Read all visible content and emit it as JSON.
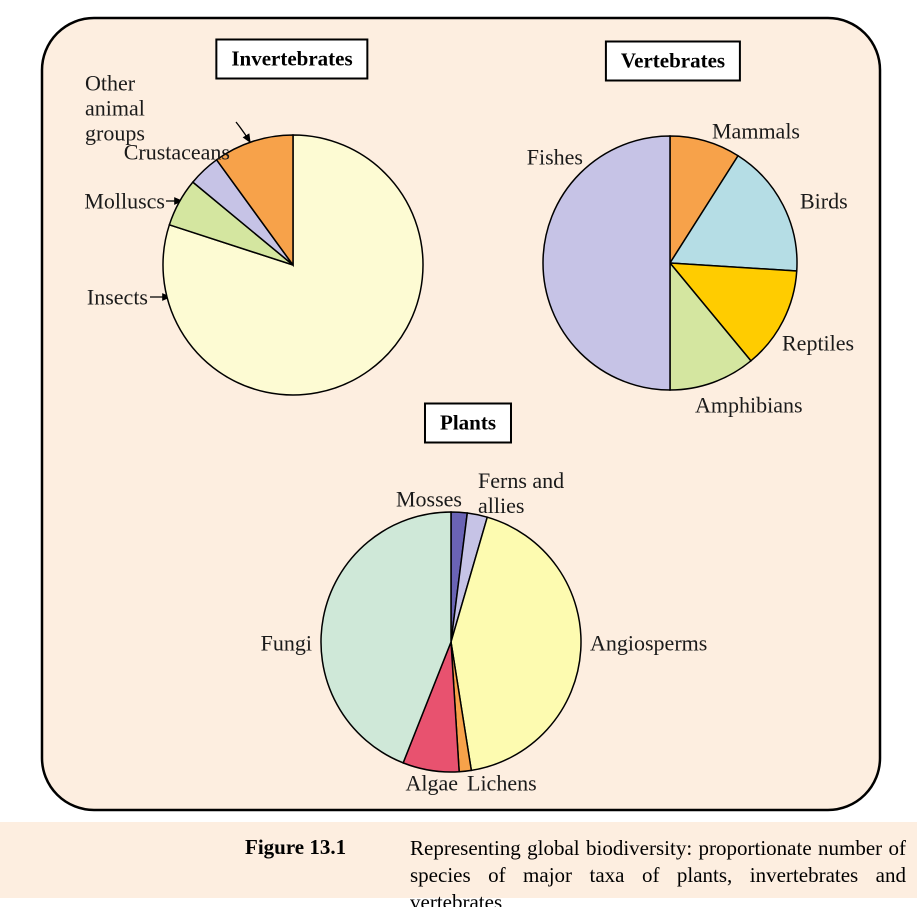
{
  "chart_data": [
    {
      "type": "pie",
      "title": "Invertebrates",
      "categories": [
        "Insects",
        "Molluscs",
        "Crustaceans",
        "Other animal groups"
      ],
      "values": [
        80,
        6,
        4,
        10
      ],
      "colors": [
        "#fdfbd3",
        "#d4e6a0",
        "#c6c3e6",
        "#f7a24a"
      ]
    },
    {
      "type": "pie",
      "title": "Vertebrates",
      "categories": [
        "Mammals",
        "Birds",
        "Reptiles",
        "Amphibians",
        "Fishes"
      ],
      "values": [
        9,
        17,
        13,
        11,
        50
      ],
      "colors": [
        "#f7a24a",
        "#b5dde5",
        "#ffcc00",
        "#d4e6a0",
        "#c6c3e6"
      ]
    },
    {
      "type": "pie",
      "title": "Plants",
      "categories": [
        "Mosses",
        "Ferns and allies",
        "Angiosperms",
        "Lichens",
        "Algae",
        "Fungi"
      ],
      "values": [
        2,
        2.5,
        43,
        1.5,
        7,
        44
      ],
      "colors": [
        "#6a63b5",
        "#c6c3e6",
        "#fdfbb0",
        "#f7a24a",
        "#e8526f",
        "#cfe8d8"
      ]
    }
  ],
  "caption": {
    "label": "Figure 13.1",
    "text": "Representing global biodiversity: proportionate number of species of major taxa of plants, invertebrates and vertebrates"
  }
}
